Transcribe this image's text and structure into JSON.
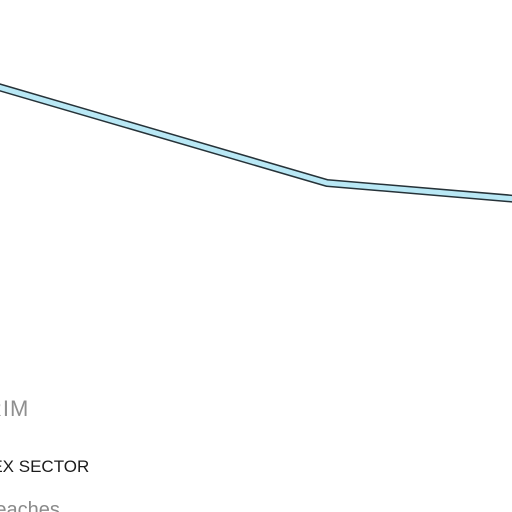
{
  "map": {
    "labels": {
      "district": "RIM",
      "sector": "VEX SECTOR",
      "area": "Beaches"
    },
    "colors": {
      "background": "#ffffff",
      "road_fill": "#b9e8f5",
      "road_casing": "#263238",
      "district_label": "#8f8f8f",
      "sector_label": "#1c1c1c",
      "area_label": "#8a8a8a"
    },
    "features": [
      {
        "type": "road",
        "style": "light-blue road with dark casing"
      }
    ]
  }
}
